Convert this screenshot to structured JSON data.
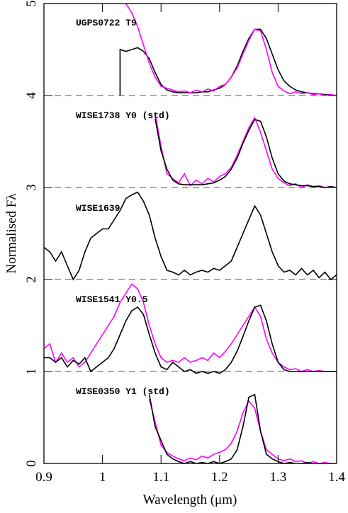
{
  "chart_data": {
    "type": "line",
    "x_label": "Wavelength (μm)",
    "y_label": "Normalised Fλ",
    "xlim": [
      0.9,
      1.4
    ],
    "ylim": [
      0,
      5
    ],
    "xticks": [
      0.9,
      1,
      1.1,
      1.2,
      1.3,
      1.4
    ],
    "yticks": [
      0,
      1,
      2,
      3,
      4,
      5
    ],
    "hlines": [
      1,
      2,
      3,
      4
    ],
    "annotations": [
      "UGPS0722 T9",
      "WISE1738 Y0 (std)",
      "WISE1639",
      "WISE1541 Y0.5",
      "WISE0350 Y1 (std)"
    ],
    "series": [
      {
        "color": "#000000",
        "x": [
          1.03,
          1.03,
          1.04,
          1.05,
          1.06,
          1.07,
          1.08,
          1.09,
          1.1,
          1.11,
          1.12,
          1.13,
          1.14,
          1.15,
          1.16,
          1.17,
          1.18,
          1.19,
          1.2,
          1.21,
          1.22,
          1.23,
          1.24,
          1.25,
          1.26,
          1.27,
          1.28,
          1.29,
          1.3,
          1.31,
          1.32,
          1.33,
          1.34,
          1.35,
          1.36,
          1.37,
          1.38,
          1.39,
          1.4
        ],
        "values": [
          4.0,
          4.5,
          4.48,
          4.5,
          4.52,
          4.48,
          4.4,
          4.25,
          4.12,
          4.06,
          4.04,
          4.03,
          4.03,
          4.03,
          4.03,
          4.04,
          4.04,
          4.06,
          4.08,
          4.12,
          4.2,
          4.32,
          4.48,
          4.62,
          4.72,
          4.72,
          4.62,
          4.45,
          4.28,
          4.16,
          4.1,
          4.06,
          4.04,
          4.03,
          4.02,
          4.02,
          4.01,
          4.01,
          4.0
        ]
      },
      {
        "color": "#ff00ff",
        "x": [
          1.04,
          1.05,
          1.06,
          1.07,
          1.08,
          1.09,
          1.1,
          1.11,
          1.12,
          1.13,
          1.14,
          1.15,
          1.16,
          1.17,
          1.18,
          1.19,
          1.2,
          1.21,
          1.22,
          1.23,
          1.24,
          1.25,
          1.26,
          1.27,
          1.28,
          1.29,
          1.3,
          1.31,
          1.32,
          1.33,
          1.34,
          1.35,
          1.36,
          1.37,
          1.38,
          1.39,
          1.4
        ],
        "values": [
          5.0,
          4.9,
          4.75,
          4.55,
          4.35,
          4.2,
          4.1,
          4.08,
          4.06,
          4.04,
          4.05,
          4.03,
          4.06,
          4.04,
          4.07,
          4.05,
          4.1,
          4.12,
          4.2,
          4.3,
          4.45,
          4.6,
          4.72,
          4.7,
          4.5,
          4.25,
          4.1,
          4.05,
          4.02,
          4.04,
          4.02,
          4.03,
          4.01,
          4.02,
          4.0,
          4.01,
          4.0
        ]
      },
      {
        "color": "#ff00ff",
        "x": [
          1.09,
          1.1,
          1.11,
          1.12,
          1.13,
          1.14,
          1.15,
          1.16,
          1.17,
          1.18,
          1.19,
          1.2,
          1.21,
          1.22,
          1.23,
          1.24,
          1.25,
          1.26,
          1.27,
          1.28,
          1.29,
          1.3,
          1.31,
          1.32,
          1.33,
          1.34,
          1.35,
          1.36,
          1.37,
          1.38,
          1.39,
          1.4
        ],
        "values": [
          3.8,
          3.45,
          3.15,
          3.1,
          3.05,
          3.15,
          3.02,
          3.08,
          3.04,
          3.1,
          3.06,
          3.12,
          3.15,
          3.22,
          3.35,
          3.5,
          3.65,
          3.76,
          3.6,
          3.4,
          3.2,
          3.1,
          3.05,
          3.02,
          3.04,
          3.0,
          3.03,
          3.01,
          3.02,
          3.0,
          3.01,
          3.0
        ]
      },
      {
        "color": "#000000",
        "x": [
          1.09,
          1.1,
          1.11,
          1.12,
          1.13,
          1.14,
          1.15,
          1.16,
          1.17,
          1.18,
          1.19,
          1.2,
          1.21,
          1.22,
          1.23,
          1.24,
          1.25,
          1.26,
          1.27,
          1.28,
          1.29,
          1.3,
          1.31,
          1.32,
          1.33,
          1.34,
          1.35,
          1.36,
          1.37,
          1.38,
          1.39,
          1.4
        ],
        "values": [
          3.75,
          3.4,
          3.2,
          3.08,
          3.04,
          3.03,
          3.03,
          3.03,
          3.03,
          3.04,
          3.05,
          3.08,
          3.12,
          3.2,
          3.32,
          3.48,
          3.62,
          3.74,
          3.72,
          3.55,
          3.32,
          3.15,
          3.07,
          3.04,
          3.03,
          3.02,
          3.02,
          3.01,
          3.01,
          3.0,
          3.01,
          3.0
        ]
      },
      {
        "color": "#000000",
        "x": [
          0.9,
          0.91,
          0.92,
          0.93,
          0.94,
          0.95,
          0.96,
          0.97,
          0.98,
          0.99,
          1,
          1.01,
          1.02,
          1.03,
          1.04,
          1.05,
          1.06,
          1.07,
          1.08,
          1.09,
          1.1,
          1.11,
          1.12,
          1.13,
          1.14,
          1.15,
          1.16,
          1.17,
          1.18,
          1.19,
          1.2,
          1.21,
          1.22,
          1.23,
          1.24,
          1.25,
          1.26,
          1.27,
          1.28,
          1.29,
          1.3,
          1.31,
          1.32,
          1.33,
          1.34,
          1.35,
          1.36,
          1.37,
          1.38,
          1.39,
          1.4
        ],
        "values": [
          2.35,
          2.3,
          2.2,
          2.3,
          2.15,
          2.0,
          2.1,
          2.3,
          2.45,
          2.5,
          2.55,
          2.55,
          2.65,
          2.75,
          2.88,
          2.92,
          2.95,
          2.85,
          2.7,
          2.45,
          2.25,
          2.1,
          2.08,
          2.05,
          2.1,
          2.05,
          2.08,
          2.1,
          2.08,
          2.12,
          2.1,
          2.15,
          2.2,
          2.35,
          2.5,
          2.65,
          2.8,
          2.7,
          2.5,
          2.3,
          2.15,
          2.08,
          2.1,
          2.05,
          2.12,
          2.05,
          2.1,
          2.02,
          2.08,
          2.0,
          2.05
        ]
      },
      {
        "color": "#ff00ff",
        "x": [
          0.9,
          0.91,
          0.92,
          0.93,
          0.94,
          0.95,
          0.96,
          0.97,
          0.98,
          0.99,
          1,
          1.01,
          1.02,
          1.03,
          1.04,
          1.05,
          1.06,
          1.07,
          1.08,
          1.09,
          1.1,
          1.11,
          1.12,
          1.13,
          1.14,
          1.15,
          1.16,
          1.17,
          1.18,
          1.19,
          1.2,
          1.21,
          1.22,
          1.23,
          1.24,
          1.25,
          1.26,
          1.27,
          1.28,
          1.29,
          1.3,
          1.31,
          1.32,
          1.33,
          1.34,
          1.35,
          1.36,
          1.37,
          1.38,
          1.39,
          1.4
        ],
        "values": [
          1.25,
          1.3,
          1.1,
          1.2,
          1.1,
          1.15,
          1.05,
          1.1,
          1.2,
          1.3,
          1.4,
          1.5,
          1.6,
          1.75,
          1.85,
          1.95,
          1.9,
          1.75,
          1.5,
          1.3,
          1.15,
          1.1,
          1.12,
          1.1,
          1.15,
          1.1,
          1.12,
          1.15,
          1.12,
          1.2,
          1.15,
          1.22,
          1.3,
          1.4,
          1.5,
          1.6,
          1.7,
          1.6,
          1.35,
          1.2,
          1.1,
          1.05,
          1.02,
          1.03,
          1.0,
          1.02,
          1.0,
          1.01,
          1.0,
          1.0,
          1.0
        ]
      },
      {
        "color": "#000000",
        "x": [
          0.9,
          0.91,
          0.92,
          0.93,
          0.94,
          0.95,
          0.96,
          0.97,
          0.98,
          0.99,
          1,
          1.01,
          1.02,
          1.03,
          1.04,
          1.05,
          1.06,
          1.07,
          1.08,
          1.09,
          1.1,
          1.11,
          1.12,
          1.13,
          1.14,
          1.15,
          1.16,
          1.17,
          1.18,
          1.19,
          1.2,
          1.21,
          1.22,
          1.23,
          1.24,
          1.25,
          1.26,
          1.27,
          1.28,
          1.29,
          1.3,
          1.31,
          1.32,
          1.33,
          1.34,
          1.35,
          1.36,
          1.37,
          1.38,
          1.39,
          1.4
        ],
        "values": [
          1.15,
          1.15,
          1.1,
          1.15,
          1.05,
          1.12,
          1.08,
          1.15,
          1.0,
          1.05,
          1.1,
          1.15,
          1.25,
          1.4,
          1.55,
          1.66,
          1.7,
          1.62,
          1.4,
          1.2,
          1.05,
          1.02,
          1.1,
          1.05,
          1.0,
          1.02,
          0.98,
          1.0,
          0.98,
          1.0,
          0.98,
          1.02,
          1.1,
          1.22,
          1.38,
          1.55,
          1.7,
          1.72,
          1.55,
          1.3,
          1.1,
          1.02,
          1.0,
          1.0,
          1.0,
          1.0,
          1.0,
          1.0,
          1.0,
          1.0,
          1.0
        ]
      },
      {
        "color": "#ff00ff",
        "x": [
          1.08,
          1.09,
          1.1,
          1.11,
          1.12,
          1.13,
          1.14,
          1.15,
          1.16,
          1.17,
          1.18,
          1.19,
          1.2,
          1.21,
          1.22,
          1.23,
          1.24,
          1.25,
          1.26,
          1.27,
          1.28,
          1.29,
          1.3,
          1.31,
          1.32,
          1.33,
          1.34,
          1.35,
          1.36,
          1.37,
          1.38,
          1.39,
          1.4
        ],
        "values": [
          0.7,
          0.45,
          0.2,
          0.12,
          0.08,
          0.05,
          0.03,
          0.06,
          0.04,
          0.08,
          0.06,
          0.1,
          0.12,
          0.15,
          0.22,
          0.35,
          0.55,
          0.68,
          0.6,
          0.35,
          0.15,
          0.1,
          0.05,
          0.03,
          0.05,
          0.02,
          0.03,
          0.0,
          0.02,
          0.0,
          0.01,
          0.0,
          0.0
        ]
      },
      {
        "color": "#000000",
        "x": [
          1.08,
          1.09,
          1.1,
          1.11,
          1.12,
          1.13,
          1.14,
          1.15,
          1.16,
          1.17,
          1.18,
          1.19,
          1.2,
          1.21,
          1.22,
          1.23,
          1.24,
          1.25,
          1.26,
          1.27,
          1.28,
          1.29,
          1.3,
          1.31,
          1.32,
          1.33,
          1.34,
          1.35,
          1.36,
          1.37,
          1.38,
          1.39,
          1.4
        ],
        "values": [
          0.75,
          0.4,
          0.25,
          0.1,
          0.05,
          0.02,
          0.0,
          0.02,
          0.0,
          0.01,
          0.0,
          0.02,
          0.0,
          0.02,
          0.05,
          0.15,
          0.4,
          0.72,
          0.75,
          0.35,
          0.1,
          0.05,
          0.02,
          0.0,
          0.01,
          0.0,
          0.0,
          0.01,
          0.0,
          0.0,
          0.0,
          0.0,
          0.0
        ]
      }
    ]
  }
}
